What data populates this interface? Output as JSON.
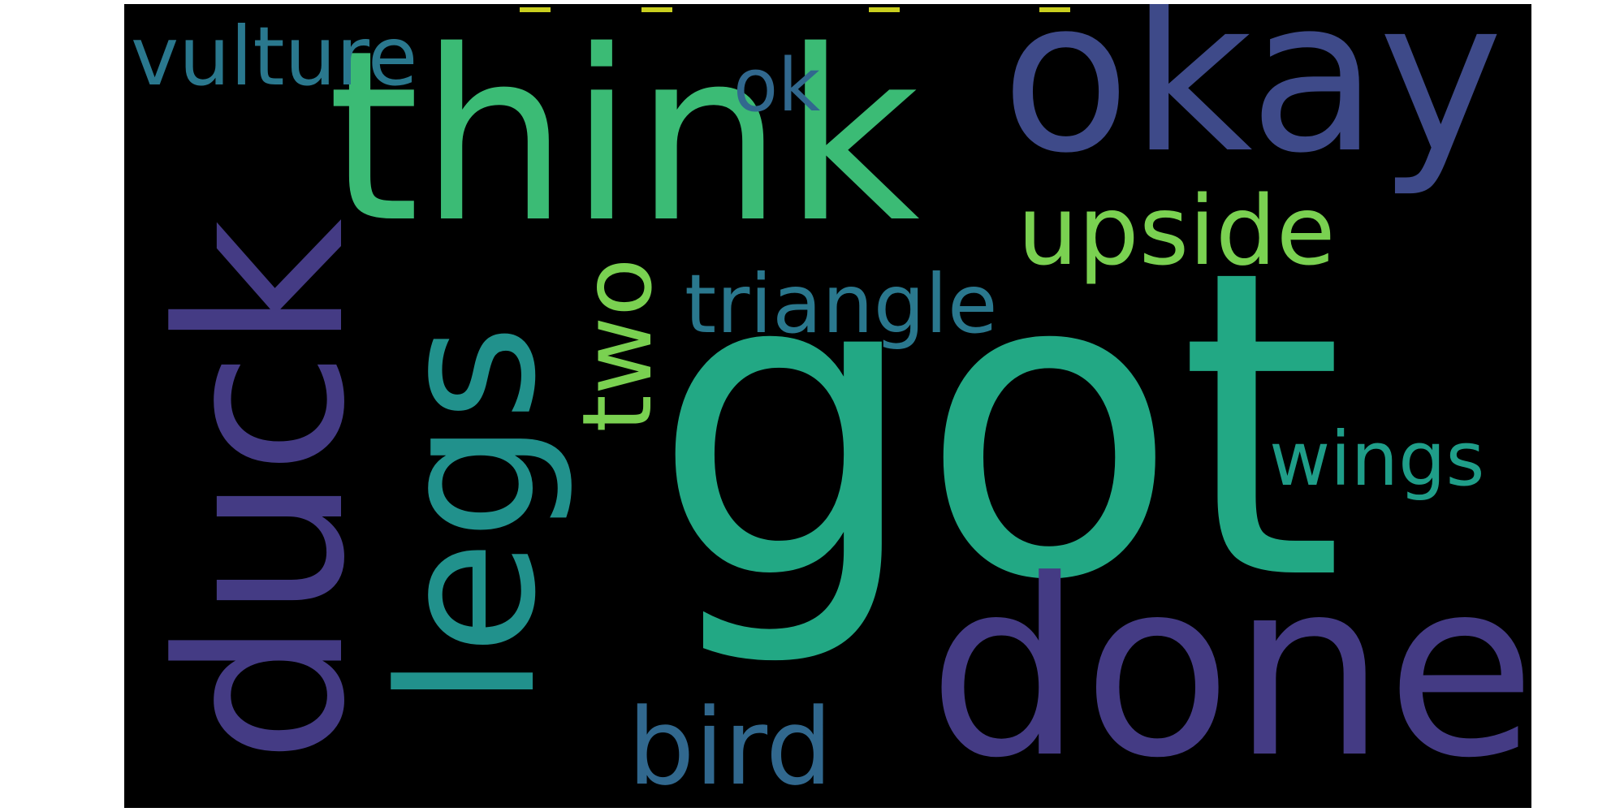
{
  "colors": {
    "background": "#000000",
    "page": "#ffffff",
    "tick": "#c9cf1f"
  },
  "words": [
    {
      "id": "got",
      "text": "got",
      "color": "#22a884"
    },
    {
      "id": "think",
      "text": "think",
      "color": "#3bbb75"
    },
    {
      "id": "okay",
      "text": "okay",
      "color": "#3e4a89"
    },
    {
      "id": "done",
      "text": "done",
      "color": "#443b84"
    },
    {
      "id": "duck",
      "text": "duck",
      "color": "#443b84"
    },
    {
      "id": "legs",
      "text": "legs",
      "color": "#21918c"
    },
    {
      "id": "vulture",
      "text": "vulture",
      "color": "#2a788e"
    },
    {
      "id": "ok",
      "text": "ok",
      "color": "#31688e"
    },
    {
      "id": "upside",
      "text": "upside",
      "color": "#7ad151"
    },
    {
      "id": "triangle",
      "text": "triangle",
      "color": "#2a788e"
    },
    {
      "id": "two",
      "text": "two",
      "color": "#7ad151"
    },
    {
      "id": "wings",
      "text": "wings",
      "color": "#1f9e89"
    },
    {
      "id": "bird",
      "text": "bird",
      "color": "#31688e"
    }
  ]
}
